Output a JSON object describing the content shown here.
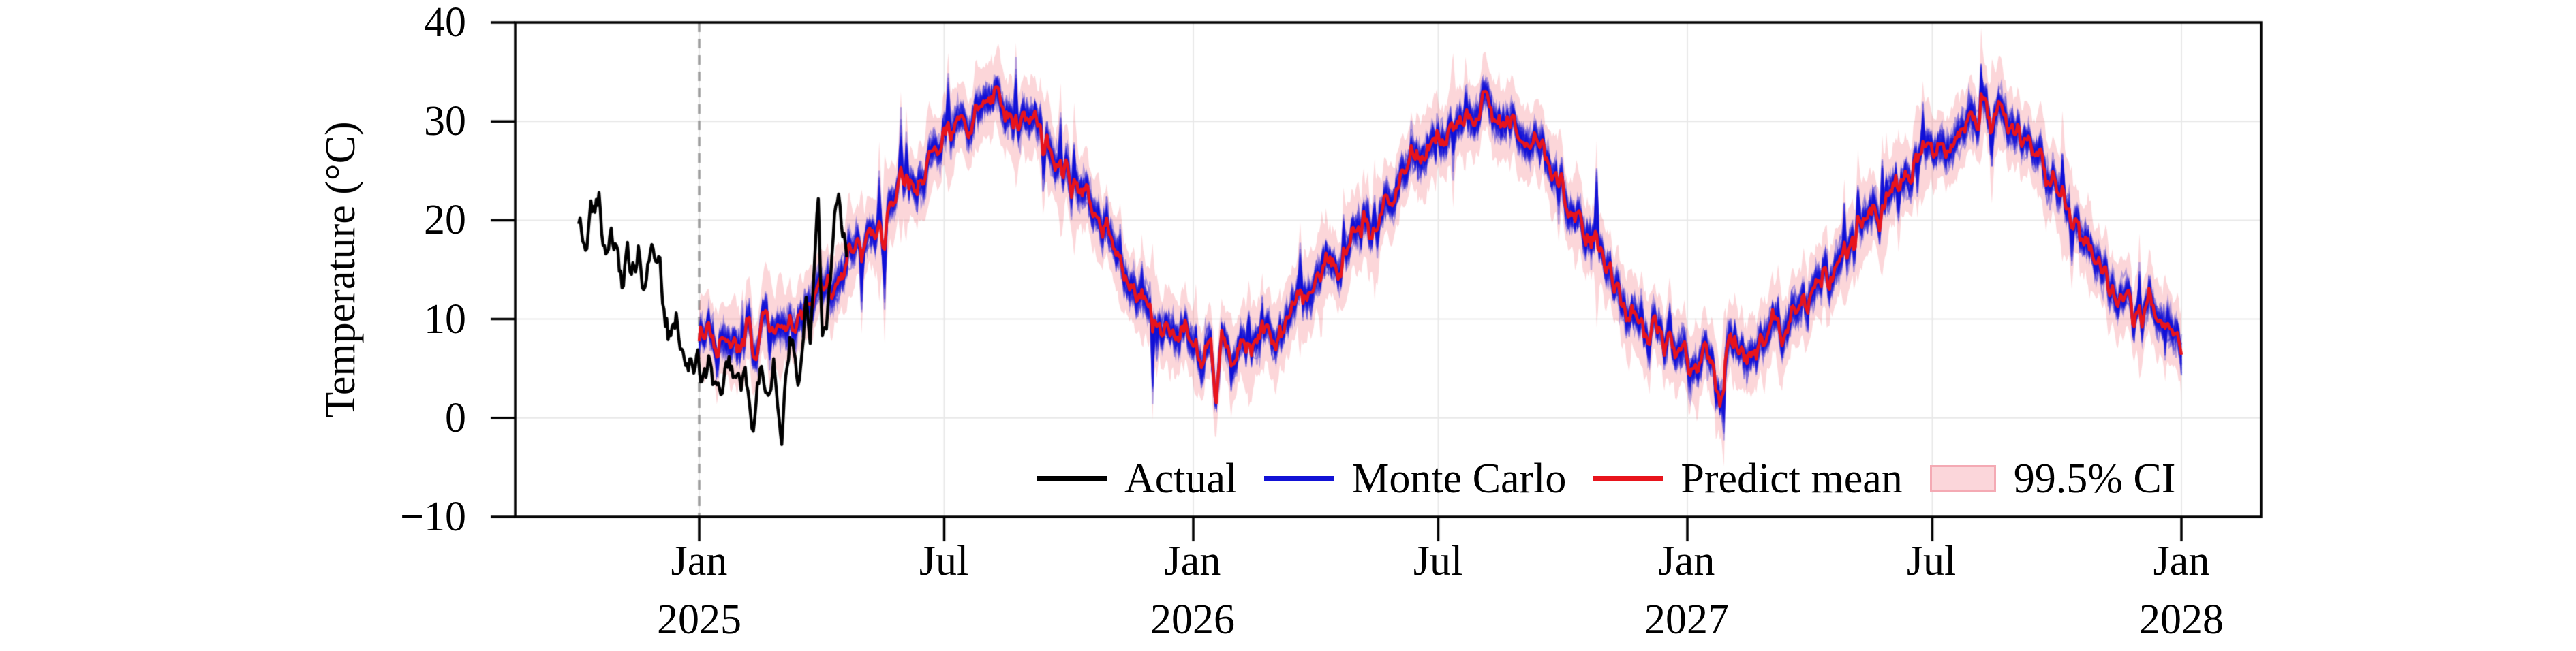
{
  "chart_data": {
    "type": "line",
    "title": "",
    "ylabel": "Temperature (°C)",
    "xlabel": "",
    "ylim": [
      -10,
      40
    ],
    "yticks": [
      40,
      30,
      20,
      10,
      0,
      -10
    ],
    "ytick_labels": [
      "40",
      "30",
      "20",
      "10",
      "0",
      "−10"
    ],
    "grid": true,
    "xticks": [
      {
        "date": "2025-01-01",
        "label": "Jan",
        "year": "2025"
      },
      {
        "date": "2025-07-01",
        "label": "Jul",
        "year": ""
      },
      {
        "date": "2026-01-01",
        "label": "Jan",
        "year": "2026"
      },
      {
        "date": "2026-07-01",
        "label": "Jul",
        "year": ""
      },
      {
        "date": "2027-01-01",
        "label": "Jan",
        "year": "2027"
      },
      {
        "date": "2027-07-01",
        "label": "Jul",
        "year": ""
      },
      {
        "date": "2028-01-01",
        "label": "Jan",
        "year": "2028"
      }
    ],
    "forecast_start": "2025-01-01",
    "forecast_start_marker": {
      "style": "dashed",
      "color": "#9b9b9b"
    },
    "x_range": [
      "2024-10-04",
      "2028-01-01"
    ],
    "legend_position": "lower center inside plot",
    "legend": [
      {
        "label": "Actual",
        "type": "line",
        "color": "#000000"
      },
      {
        "label": "Monte Carlo",
        "type": "line",
        "color": "#1212d6"
      },
      {
        "label": "Predict mean",
        "type": "line",
        "color": "#e8141c"
      },
      {
        "label": "99.5% CI",
        "type": "patch",
        "fill": "#fbd6da",
        "border": "#f4aab4"
      }
    ],
    "series": [
      {
        "name": "Actual",
        "color": "#000000",
        "anchors": [
          [
            "2024-10-04",
            20.5
          ],
          [
            "2024-10-07",
            18.5
          ],
          [
            "2024-10-10",
            17.5
          ],
          [
            "2024-10-13",
            21.5
          ],
          [
            "2024-10-16",
            21.0
          ],
          [
            "2024-10-19",
            23.0
          ],
          [
            "2024-10-22",
            17.0
          ],
          [
            "2024-10-25",
            16.5
          ],
          [
            "2024-10-28",
            19.5
          ],
          [
            "2024-10-31",
            18.0
          ],
          [
            "2024-11-03",
            14.0
          ],
          [
            "2024-11-06",
            13.5
          ],
          [
            "2024-11-09",
            17.0
          ],
          [
            "2024-11-12",
            15.5
          ],
          [
            "2024-11-15",
            14.0
          ],
          [
            "2024-11-18",
            16.0
          ],
          [
            "2024-11-21",
            12.5
          ],
          [
            "2024-11-24",
            14.5
          ],
          [
            "2024-11-27",
            16.0
          ],
          [
            "2024-11-30",
            15.5
          ],
          [
            "2024-12-03",
            15.5
          ],
          [
            "2024-12-06",
            10.0
          ],
          [
            "2024-12-09",
            8.0
          ],
          [
            "2024-12-12",
            9.0
          ],
          [
            "2024-12-15",
            11.5
          ],
          [
            "2024-12-18",
            7.0
          ],
          [
            "2024-12-21",
            5.5
          ],
          [
            "2024-12-24",
            4.5
          ],
          [
            "2024-12-27",
            5.0
          ],
          [
            "2024-12-30",
            5.5
          ],
          [
            "2025-01-02",
            4.0
          ],
          [
            "2025-01-05",
            5.5
          ],
          [
            "2025-01-08",
            6.5
          ],
          [
            "2025-01-11",
            3.5
          ],
          [
            "2025-01-14",
            4.5
          ],
          [
            "2025-01-17",
            3.0
          ],
          [
            "2025-01-20",
            4.0
          ],
          [
            "2025-01-23",
            6.0
          ],
          [
            "2025-01-26",
            4.5
          ],
          [
            "2025-01-29",
            3.0
          ],
          [
            "2025-02-01",
            2.5
          ],
          [
            "2025-02-04",
            5.0
          ],
          [
            "2025-02-07",
            1.0
          ],
          [
            "2025-02-10",
            -1.5
          ],
          [
            "2025-02-13",
            2.0
          ],
          [
            "2025-02-16",
            6.0
          ],
          [
            "2025-02-19",
            3.5
          ],
          [
            "2025-02-22",
            2.0
          ],
          [
            "2025-02-25",
            4.5
          ],
          [
            "2025-02-28",
            1.0
          ],
          [
            "2025-03-03",
            -3.0
          ],
          [
            "2025-03-06",
            4.0
          ],
          [
            "2025-03-09",
            8.5
          ],
          [
            "2025-03-12",
            5.0
          ],
          [
            "2025-03-15",
            2.0
          ],
          [
            "2025-03-18",
            6.5
          ],
          [
            "2025-03-21",
            11.0
          ],
          [
            "2025-03-24",
            7.0
          ],
          [
            "2025-03-27",
            15.0
          ],
          [
            "2025-03-30",
            22.0
          ],
          [
            "2025-04-02",
            9.0
          ],
          [
            "2025-04-05",
            8.0
          ],
          [
            "2025-04-08",
            15.0
          ],
          [
            "2025-04-11",
            21.0
          ],
          [
            "2025-04-14",
            22.5
          ],
          [
            "2025-04-17",
            17.0
          ],
          [
            "2025-04-20",
            16.0
          ]
        ]
      },
      {
        "name": "Predict mean",
        "color": "#e8141c",
        "anchors": [
          [
            "2025-01-01",
            7.5
          ],
          [
            "2025-01-08",
            9.5
          ],
          [
            "2025-01-15",
            6.5
          ],
          [
            "2025-01-22",
            8.5
          ],
          [
            "2025-01-29",
            7.0
          ],
          [
            "2025-02-05",
            9.0
          ],
          [
            "2025-02-12",
            6.5
          ],
          [
            "2025-02-19",
            9.5
          ],
          [
            "2025-02-26",
            8.0
          ],
          [
            "2025-03-05",
            10.5
          ],
          [
            "2025-03-12",
            9.5
          ],
          [
            "2025-03-19",
            12.0
          ],
          [
            "2025-03-26",
            11.5
          ],
          [
            "2025-04-02",
            13.0
          ],
          [
            "2025-04-09",
            12.0
          ],
          [
            "2025-04-16",
            15.0
          ],
          [
            "2025-04-23",
            16.5
          ],
          [
            "2025-04-30",
            17.5
          ],
          [
            "2025-05-07",
            19.5
          ],
          [
            "2025-05-14",
            18.5
          ],
          [
            "2025-05-21",
            21.0
          ],
          [
            "2025-05-28",
            22.5
          ],
          [
            "2025-06-04",
            24.0
          ],
          [
            "2025-06-11",
            23.5
          ],
          [
            "2025-06-18",
            26.0
          ],
          [
            "2025-06-25",
            27.0
          ],
          [
            "2025-07-02",
            27.5
          ],
          [
            "2025-07-09",
            29.5
          ],
          [
            "2025-07-16",
            28.5
          ],
          [
            "2025-07-23",
            30.5
          ],
          [
            "2025-07-30",
            31.5
          ],
          [
            "2025-08-06",
            33.5
          ],
          [
            "2025-08-13",
            32.0
          ],
          [
            "2025-08-20",
            30.5
          ],
          [
            "2025-08-27",
            31.0
          ],
          [
            "2025-09-03",
            29.5
          ],
          [
            "2025-09-10",
            30.0
          ],
          [
            "2025-09-17",
            27.0
          ],
          [
            "2025-09-24",
            26.0
          ],
          [
            "2025-10-01",
            24.5
          ],
          [
            "2025-10-08",
            23.0
          ],
          [
            "2025-10-15",
            23.5
          ],
          [
            "2025-10-22",
            20.5
          ],
          [
            "2025-10-29",
            18.5
          ],
          [
            "2025-11-05",
            16.5
          ],
          [
            "2025-11-12",
            15.0
          ],
          [
            "2025-11-19",
            12.5
          ],
          [
            "2025-11-26",
            11.5
          ],
          [
            "2025-12-03",
            10.5
          ],
          [
            "2025-12-10",
            9.0
          ],
          [
            "2025-12-17",
            8.0
          ],
          [
            "2025-12-24",
            9.5
          ],
          [
            "2025-12-31",
            8.5
          ],
          [
            "2026-01-07",
            7.0
          ],
          [
            "2026-01-14",
            8.0
          ],
          [
            "2026-01-18",
            1.0
          ],
          [
            "2026-01-22",
            7.5
          ],
          [
            "2026-01-29",
            6.5
          ],
          [
            "2026-02-05",
            8.5
          ],
          [
            "2026-02-12",
            6.5
          ],
          [
            "2026-02-19",
            8.0
          ],
          [
            "2026-02-26",
            9.0
          ],
          [
            "2026-03-05",
            8.5
          ],
          [
            "2026-03-12",
            11.0
          ],
          [
            "2026-03-19",
            12.5
          ],
          [
            "2026-03-26",
            13.0
          ],
          [
            "2026-04-02",
            13.5
          ],
          [
            "2026-04-09",
            15.5
          ],
          [
            "2026-04-16",
            14.5
          ],
          [
            "2026-04-23",
            16.5
          ],
          [
            "2026-04-30",
            18.0
          ],
          [
            "2026-05-07",
            19.5
          ],
          [
            "2026-05-14",
            19.0
          ],
          [
            "2026-05-21",
            21.5
          ],
          [
            "2026-05-28",
            22.5
          ],
          [
            "2026-06-04",
            24.5
          ],
          [
            "2026-06-11",
            26.0
          ],
          [
            "2026-06-18",
            25.5
          ],
          [
            "2026-06-25",
            27.0
          ],
          [
            "2026-07-02",
            28.0
          ],
          [
            "2026-07-09",
            29.5
          ],
          [
            "2026-07-16",
            30.5
          ],
          [
            "2026-07-23",
            29.0
          ],
          [
            "2026-07-30",
            30.5
          ],
          [
            "2026-08-04",
            33.5
          ],
          [
            "2026-08-11",
            30.5
          ],
          [
            "2026-08-18",
            29.5
          ],
          [
            "2026-08-25",
            30.0
          ],
          [
            "2026-09-01",
            28.5
          ],
          [
            "2026-09-08",
            27.0
          ],
          [
            "2026-09-15",
            28.0
          ],
          [
            "2026-09-22",
            25.0
          ],
          [
            "2026-09-29",
            23.5
          ],
          [
            "2026-10-06",
            21.5
          ],
          [
            "2026-10-13",
            19.5
          ],
          [
            "2026-10-20",
            17.5
          ],
          [
            "2026-10-27",
            16.5
          ],
          [
            "2026-11-03",
            15.0
          ],
          [
            "2026-11-10",
            13.0
          ],
          [
            "2026-11-17",
            11.0
          ],
          [
            "2026-11-24",
            9.5
          ],
          [
            "2026-12-01",
            8.0
          ],
          [
            "2026-12-08",
            9.5
          ],
          [
            "2026-12-15",
            6.5
          ],
          [
            "2026-12-22",
            7.5
          ],
          [
            "2026-12-29",
            7.0
          ],
          [
            "2027-01-05",
            5.0
          ],
          [
            "2027-01-12",
            7.0
          ],
          [
            "2027-01-19",
            6.0
          ],
          [
            "2027-01-25",
            1.5
          ],
          [
            "2027-01-29",
            6.0
          ],
          [
            "2027-02-05",
            7.5
          ],
          [
            "2027-02-12",
            5.0
          ],
          [
            "2027-02-19",
            7.0
          ],
          [
            "2027-02-26",
            8.0
          ],
          [
            "2027-03-05",
            9.5
          ],
          [
            "2027-03-12",
            9.0
          ],
          [
            "2027-03-19",
            11.0
          ],
          [
            "2027-03-26",
            12.0
          ],
          [
            "2027-04-02",
            12.5
          ],
          [
            "2027-04-09",
            14.0
          ],
          [
            "2027-04-16",
            13.5
          ],
          [
            "2027-04-23",
            15.5
          ],
          [
            "2027-04-30",
            17.0
          ],
          [
            "2027-05-07",
            19.0
          ],
          [
            "2027-05-14",
            20.5
          ],
          [
            "2027-05-21",
            19.5
          ],
          [
            "2027-05-28",
            21.5
          ],
          [
            "2027-06-04",
            23.5
          ],
          [
            "2027-06-11",
            25.0
          ],
          [
            "2027-06-18",
            24.5
          ],
          [
            "2027-06-25",
            26.0
          ],
          [
            "2027-07-02",
            27.0
          ],
          [
            "2027-07-09",
            28.5
          ],
          [
            "2027-07-16",
            27.5
          ],
          [
            "2027-07-23",
            29.5
          ],
          [
            "2027-07-30",
            30.0
          ],
          [
            "2027-08-06",
            31.5
          ],
          [
            "2027-08-13",
            30.5
          ],
          [
            "2027-08-20",
            31.0
          ],
          [
            "2027-08-27",
            30.0
          ],
          [
            "2027-09-03",
            29.0
          ],
          [
            "2027-09-10",
            27.5
          ],
          [
            "2027-09-17",
            26.5
          ],
          [
            "2027-09-24",
            24.5
          ],
          [
            "2027-10-01",
            23.5
          ],
          [
            "2027-10-08",
            21.5
          ],
          [
            "2027-10-15",
            20.0
          ],
          [
            "2027-10-22",
            18.5
          ],
          [
            "2027-10-29",
            17.0
          ],
          [
            "2027-11-05",
            15.0
          ],
          [
            "2027-11-12",
            13.0
          ],
          [
            "2027-11-19",
            12.0
          ],
          [
            "2027-11-26",
            10.5
          ],
          [
            "2027-12-03",
            10.0
          ],
          [
            "2027-12-08",
            11.5
          ],
          [
            "2027-12-15",
            8.5
          ],
          [
            "2027-12-22",
            9.5
          ],
          [
            "2027-12-29",
            8.0
          ],
          [
            "2028-01-01",
            7.0
          ]
        ]
      },
      {
        "name": "Monte Carlo",
        "color": "#1212d6",
        "n_paths": 30,
        "spread_degC": 2.5,
        "alpha": 0.3,
        "range": [
          "2025-01-01",
          "2028-01-01"
        ]
      },
      {
        "name": "99.5% CI",
        "color": "#ed1c2e",
        "alpha": 0.18,
        "half_width_degC": 4.0,
        "range": [
          "2025-01-01",
          "2028-01-01"
        ]
      }
    ]
  }
}
